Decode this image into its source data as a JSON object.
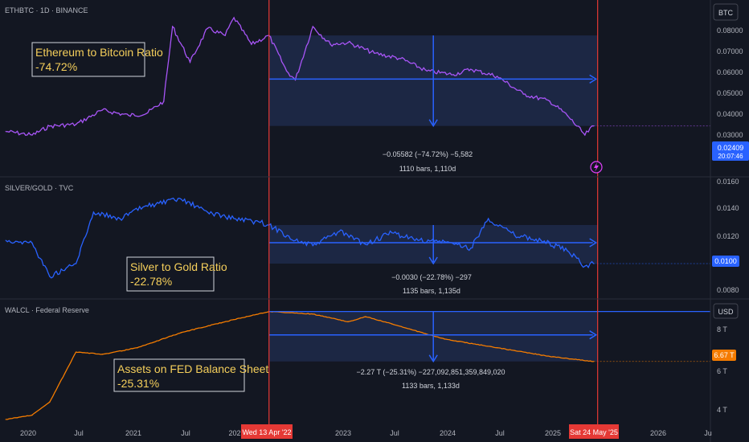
{
  "colors": {
    "background": "#131722",
    "eth_line": "#a855f7",
    "silver_line": "#2962ff",
    "fed_line": "#f57c00",
    "marker_red": "#e53935",
    "highlight_band": "#1e2a4a",
    "measure_arrow": "#2962ff",
    "annotation_text": "#f5cf5b"
  },
  "panes": [
    {
      "id": "eth",
      "title": "ETHBTC · 1D · BINANCE",
      "currency_badge": "BTC",
      "annotation": {
        "name": "Ethereum to Bitcoin Ratio",
        "change": "-74.72%"
      },
      "measure_stat": "−0.05582 (−74.72%) −5,582",
      "measure_bars": "1110 bars, 1,110d",
      "price_tag": "0.02409",
      "price_tag_time": "20:07:46",
      "y_ticks": [
        "0.08000",
        "0.07000",
        "0.06000",
        "0.05000",
        "0.04000",
        "0.03000"
      ]
    },
    {
      "id": "silver",
      "title": "SILVER/GOLD · TVC",
      "annotation": {
        "name": "Silver to Gold Ratio",
        "change": "-22.78%"
      },
      "measure_stat": "−0.0030 (−22.78%) −297",
      "measure_bars": "1135 bars, 1,135d",
      "price_tag": "0.0100",
      "y_ticks": [
        "0.0160",
        "0.0140",
        "0.0120",
        "0.0080"
      ]
    },
    {
      "id": "fed",
      "title": "WALCL · Federal Reserve",
      "currency_badge": "USD",
      "annotation": {
        "name": "Assets on FED Balance Sheet",
        "change": "-25.31%"
      },
      "measure_stat": "−2.27 T (−25.31%) −227,092,851,359,849,020",
      "measure_bars": "1133 bars, 1,133d",
      "price_tag": "6.67 T",
      "y_ticks": [
        "8 T",
        "6 T",
        "4 T"
      ]
    }
  ],
  "x_axis": {
    "labels": [
      "2020",
      "Jul",
      "2021",
      "Jul",
      "202",
      "2023",
      "Jul",
      "2024",
      "Jul",
      "2025",
      "2026",
      "Ju"
    ],
    "marker_start": "Wed 13 Apr '22",
    "marker_end": "Sat 24 May '25"
  },
  "chart_data": [
    {
      "type": "line",
      "title": "ETHBTC · 1D · BINANCE",
      "x_range": [
        "2019-10",
        "2026-06"
      ],
      "ylim": [
        0.0,
        0.085
      ],
      "x": [
        "2019-10",
        "2020-01",
        "2020-03",
        "2020-06",
        "2020-09",
        "2020-12",
        "2021-02",
        "2021-04",
        "2021-05",
        "2021-07",
        "2021-09",
        "2021-11",
        "2021-12",
        "2022-02",
        "2022-04",
        "2022-06",
        "2022-07",
        "2022-09",
        "2022-11",
        "2023-01",
        "2023-04",
        "2023-07",
        "2023-10",
        "2024-01",
        "2024-03",
        "2024-06",
        "2024-09",
        "2024-12",
        "2025-02",
        "2025-04",
        "2025-05"
      ],
      "values": [
        0.021,
        0.019,
        0.024,
        0.025,
        0.033,
        0.03,
        0.031,
        0.038,
        0.08,
        0.06,
        0.079,
        0.075,
        0.085,
        0.07,
        0.075,
        0.055,
        0.05,
        0.08,
        0.07,
        0.071,
        0.065,
        0.062,
        0.055,
        0.053,
        0.056,
        0.052,
        0.042,
        0.038,
        0.03,
        0.019,
        0.02409
      ]
    },
    {
      "type": "line",
      "title": "SILVER/GOLD · TVC",
      "x_range": [
        "2019-10",
        "2026-06"
      ],
      "ylim": [
        0.0075,
        0.0165
      ],
      "x": [
        "2019-10",
        "2020-01",
        "2020-03",
        "2020-06",
        "2020-08",
        "2020-11",
        "2021-02",
        "2021-06",
        "2021-09",
        "2021-12",
        "2022-03",
        "2022-04",
        "2022-07",
        "2022-09",
        "2022-12",
        "2023-03",
        "2023-06",
        "2023-09",
        "2023-12",
        "2024-03",
        "2024-05",
        "2024-08",
        "2024-11",
        "2025-02",
        "2025-04",
        "2025-05"
      ],
      "values": [
        0.0118,
        0.0116,
        0.009,
        0.01,
        0.014,
        0.0135,
        0.0145,
        0.015,
        0.014,
        0.0135,
        0.0132,
        0.013,
        0.0118,
        0.0114,
        0.0125,
        0.0115,
        0.0124,
        0.0118,
        0.0117,
        0.0112,
        0.0135,
        0.0122,
        0.0118,
        0.011,
        0.0098,
        0.01
      ]
    },
    {
      "type": "line",
      "title": "WALCL · Federal Reserve",
      "x_range": [
        "2019-10",
        "2026-06"
      ],
      "ylim": [
        3.7,
        9.4
      ],
      "x": [
        "2019-10",
        "2020-01",
        "2020-03",
        "2020-06",
        "2020-09",
        "2021-01",
        "2021-06",
        "2021-12",
        "2022-04",
        "2022-09",
        "2023-01",
        "2023-03",
        "2023-06",
        "2023-12",
        "2024-06",
        "2024-12",
        "2025-05"
      ],
      "values": [
        4.0,
        4.2,
        4.8,
        7.1,
        7.0,
        7.3,
        8.0,
        8.6,
        8.97,
        8.85,
        8.5,
        8.73,
        8.4,
        7.7,
        7.3,
        6.9,
        6.67
      ]
    }
  ]
}
